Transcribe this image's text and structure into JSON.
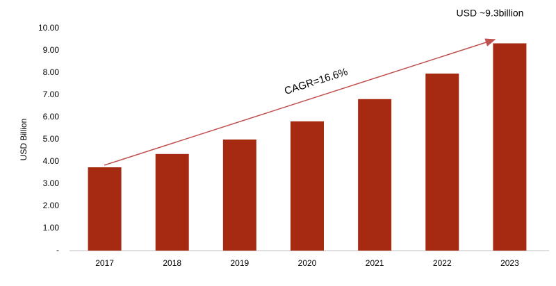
{
  "chart_data": {
    "type": "bar",
    "y_label": "USD Billion",
    "annotations": [
      "CAGR=16.6%",
      "USD ~9.3billion"
    ],
    "categories": [
      "2017",
      "2018",
      "2019",
      "2020",
      "2021",
      "2022",
      "2023"
    ],
    "values": [
      3.75,
      4.35,
      5.0,
      5.82,
      6.82,
      7.97,
      9.33
    ],
    "color": "#a52a11",
    "ylim": [
      0,
      10
    ],
    "yticks": [
      {
        "value": 0,
        "label": "-"
      },
      {
        "value": 1,
        "label": "1.00"
      },
      {
        "value": 2,
        "label": "2.00"
      },
      {
        "value": 3,
        "label": "3.00"
      },
      {
        "value": 4,
        "label": "4.00"
      },
      {
        "value": 5,
        "label": "5.00"
      },
      {
        "value": 6,
        "label": "6.00"
      },
      {
        "value": 7,
        "label": "7.00"
      },
      {
        "value": 8,
        "label": "8.00"
      },
      {
        "value": 9,
        "label": "9.00"
      },
      {
        "value": 10,
        "label": "10.00"
      }
    ],
    "grid": false
  }
}
